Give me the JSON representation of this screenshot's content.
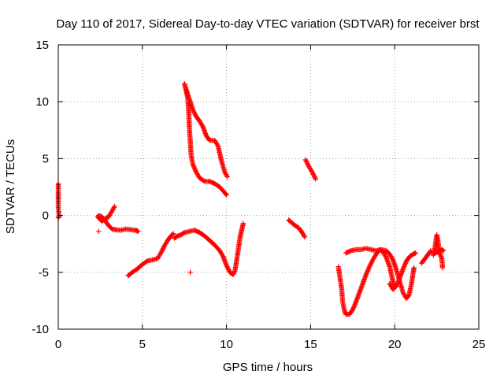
{
  "chart_data": {
    "type": "scatter",
    "title": "Day 110 of 2017, Sidereal Day-to-day VTEC variation (SDTVAR) for receiver brst",
    "xlabel": "GPS time / hours",
    "ylabel": "SDTVAR / TECUs",
    "xlim": [
      0,
      25
    ],
    "ylim": [
      -10,
      15
    ],
    "xticks": [
      0,
      5,
      10,
      15,
      20,
      25
    ],
    "yticks": [
      -10,
      -5,
      0,
      5,
      10,
      15
    ],
    "grid": true,
    "marker": "plus",
    "color": "#ff0000",
    "segments": [
      [
        [
          0.0,
          2.8
        ],
        [
          0.0,
          2.7
        ],
        [
          0.0,
          0.8
        ],
        [
          0.05,
          -0.1
        ],
        [
          0.0,
          -0.2
        ]
      ],
      [
        [
          2.4,
          -1.4
        ]
      ],
      [
        [
          2.35,
          -0.1
        ],
        [
          2.45,
          -0.3
        ],
        [
          2.6,
          -0.5
        ],
        [
          2.8,
          -0.3
        ],
        [
          3.0,
          -0.1
        ],
        [
          3.2,
          0.4
        ],
        [
          3.35,
          0.8
        ]
      ],
      [
        [
          2.4,
          0.0
        ],
        [
          2.6,
          -0.1
        ],
        [
          2.8,
          -0.5
        ],
        [
          3.0,
          -0.9
        ],
        [
          3.2,
          -1.2
        ],
        [
          3.4,
          -1.25
        ],
        [
          3.7,
          -1.3
        ],
        [
          4.0,
          -1.2
        ],
        [
          4.3,
          -1.25
        ],
        [
          4.6,
          -1.3
        ],
        [
          4.75,
          -1.4
        ]
      ],
      [
        [
          4.15,
          -5.3
        ],
        [
          4.4,
          -5.0
        ],
        [
          4.7,
          -4.7
        ],
        [
          5.0,
          -4.3
        ],
        [
          5.3,
          -4.0
        ],
        [
          5.6,
          -3.9
        ],
        [
          5.9,
          -3.8
        ],
        [
          6.1,
          -3.3
        ],
        [
          6.3,
          -2.7
        ],
        [
          6.5,
          -2.2
        ],
        [
          6.7,
          -1.8
        ],
        [
          6.85,
          -1.6
        ]
      ],
      [
        [
          6.9,
          -2.0
        ],
        [
          7.1,
          -1.8
        ],
        [
          7.3,
          -1.7
        ],
        [
          7.5,
          -1.5
        ],
        [
          7.8,
          -1.4
        ],
        [
          8.1,
          -1.3
        ],
        [
          8.4,
          -1.5
        ],
        [
          8.7,
          -1.8
        ],
        [
          9.0,
          -2.2
        ],
        [
          9.3,
          -2.6
        ],
        [
          9.6,
          -3.1
        ],
        [
          9.8,
          -3.6
        ],
        [
          10.0,
          -4.4
        ],
        [
          10.2,
          -5.0
        ],
        [
          10.4,
          -5.2
        ],
        [
          10.5,
          -4.9
        ],
        [
          10.6,
          -4.0
        ],
        [
          10.7,
          -3.0
        ],
        [
          10.8,
          -2.0
        ],
        [
          10.9,
          -1.3
        ],
        [
          11.0,
          -0.7
        ]
      ],
      [
        [
          7.85,
          -5.0
        ]
      ],
      [
        [
          7.5,
          11.6
        ],
        [
          7.6,
          11.0
        ],
        [
          7.7,
          10.3
        ],
        [
          7.75,
          9.2
        ],
        [
          7.8,
          7.5
        ],
        [
          7.85,
          6.5
        ],
        [
          7.9,
          5.3
        ],
        [
          8.0,
          4.5
        ],
        [
          8.2,
          3.8
        ],
        [
          8.4,
          3.3
        ],
        [
          8.7,
          3.0
        ],
        [
          9.0,
          3.0
        ],
        [
          9.3,
          2.8
        ],
        [
          9.6,
          2.5
        ],
        [
          9.9,
          2.0
        ],
        [
          10.0,
          1.8
        ]
      ],
      [
        [
          7.55,
          11.3
        ],
        [
          7.8,
          10.2
        ],
        [
          8.0,
          9.3
        ],
        [
          8.2,
          8.7
        ],
        [
          8.4,
          8.3
        ],
        [
          8.6,
          7.8
        ],
        [
          8.8,
          7.0
        ],
        [
          9.0,
          6.6
        ],
        [
          9.3,
          6.6
        ],
        [
          9.5,
          6.1
        ],
        [
          9.7,
          4.8
        ],
        [
          9.9,
          3.8
        ],
        [
          10.05,
          3.4
        ]
      ],
      [
        [
          13.7,
          -0.4
        ],
        [
          14.0,
          -0.8
        ],
        [
          14.3,
          -1.1
        ],
        [
          14.5,
          -1.5
        ],
        [
          14.65,
          -1.9
        ]
      ],
      [
        [
          14.7,
          4.9
        ],
        [
          14.9,
          4.3
        ],
        [
          15.1,
          3.8
        ],
        [
          15.3,
          3.2
        ]
      ],
      [
        [
          16.65,
          -4.5
        ],
        [
          16.75,
          -5.5
        ],
        [
          16.85,
          -6.5
        ],
        [
          16.9,
          -7.5
        ],
        [
          17.0,
          -8.3
        ],
        [
          17.1,
          -8.7
        ],
        [
          17.3,
          -8.7
        ],
        [
          17.5,
          -8.3
        ],
        [
          17.7,
          -7.6
        ],
        [
          17.9,
          -6.8
        ],
        [
          18.1,
          -6.0
        ],
        [
          18.3,
          -5.2
        ],
        [
          18.5,
          -4.5
        ],
        [
          18.7,
          -3.9
        ],
        [
          18.9,
          -3.4
        ],
        [
          19.1,
          -3.0
        ],
        [
          19.3,
          -3.2
        ],
        [
          19.5,
          -3.7
        ],
        [
          19.7,
          -4.5
        ],
        [
          19.85,
          -5.5
        ],
        [
          19.95,
          -6.2
        ]
      ],
      [
        [
          17.1,
          -3.3
        ],
        [
          17.4,
          -3.1
        ],
        [
          17.7,
          -3.0
        ],
        [
          18.0,
          -3.0
        ],
        [
          18.3,
          -2.9
        ],
        [
          18.6,
          -3.0
        ],
        [
          18.9,
          -3.1
        ],
        [
          19.2,
          -3.0
        ],
        [
          19.5,
          -3.1
        ],
        [
          19.7,
          -3.4
        ],
        [
          19.9,
          -3.9
        ],
        [
          20.1,
          -4.8
        ],
        [
          20.3,
          -5.8
        ],
        [
          20.5,
          -6.8
        ],
        [
          20.7,
          -7.3
        ],
        [
          20.85,
          -7.0
        ],
        [
          21.0,
          -6.0
        ],
        [
          21.1,
          -5.0
        ],
        [
          21.15,
          -4.6
        ]
      ],
      [
        [
          19.7,
          -6.0
        ],
        [
          19.9,
          -6.5
        ],
        [
          20.1,
          -6.2
        ],
        [
          20.3,
          -5.5
        ],
        [
          20.5,
          -4.7
        ],
        [
          20.7,
          -4.0
        ],
        [
          20.9,
          -3.6
        ],
        [
          21.1,
          -3.4
        ],
        [
          21.25,
          -3.3
        ]
      ],
      [
        [
          21.6,
          -4.2
        ],
        [
          21.8,
          -3.8
        ],
        [
          22.0,
          -3.4
        ],
        [
          22.15,
          -3.1
        ]
      ],
      [
        [
          22.3,
          -3.5
        ],
        [
          22.4,
          -2.8
        ],
        [
          22.5,
          -1.7
        ],
        [
          22.55,
          -2.0
        ],
        [
          22.65,
          -3.2
        ],
        [
          22.8,
          -3.8
        ],
        [
          22.85,
          -4.6
        ]
      ],
      [
        [
          22.4,
          -3.3
        ],
        [
          22.6,
          -3.2
        ],
        [
          22.8,
          -3.0
        ],
        [
          22.9,
          -3.1
        ]
      ]
    ]
  }
}
